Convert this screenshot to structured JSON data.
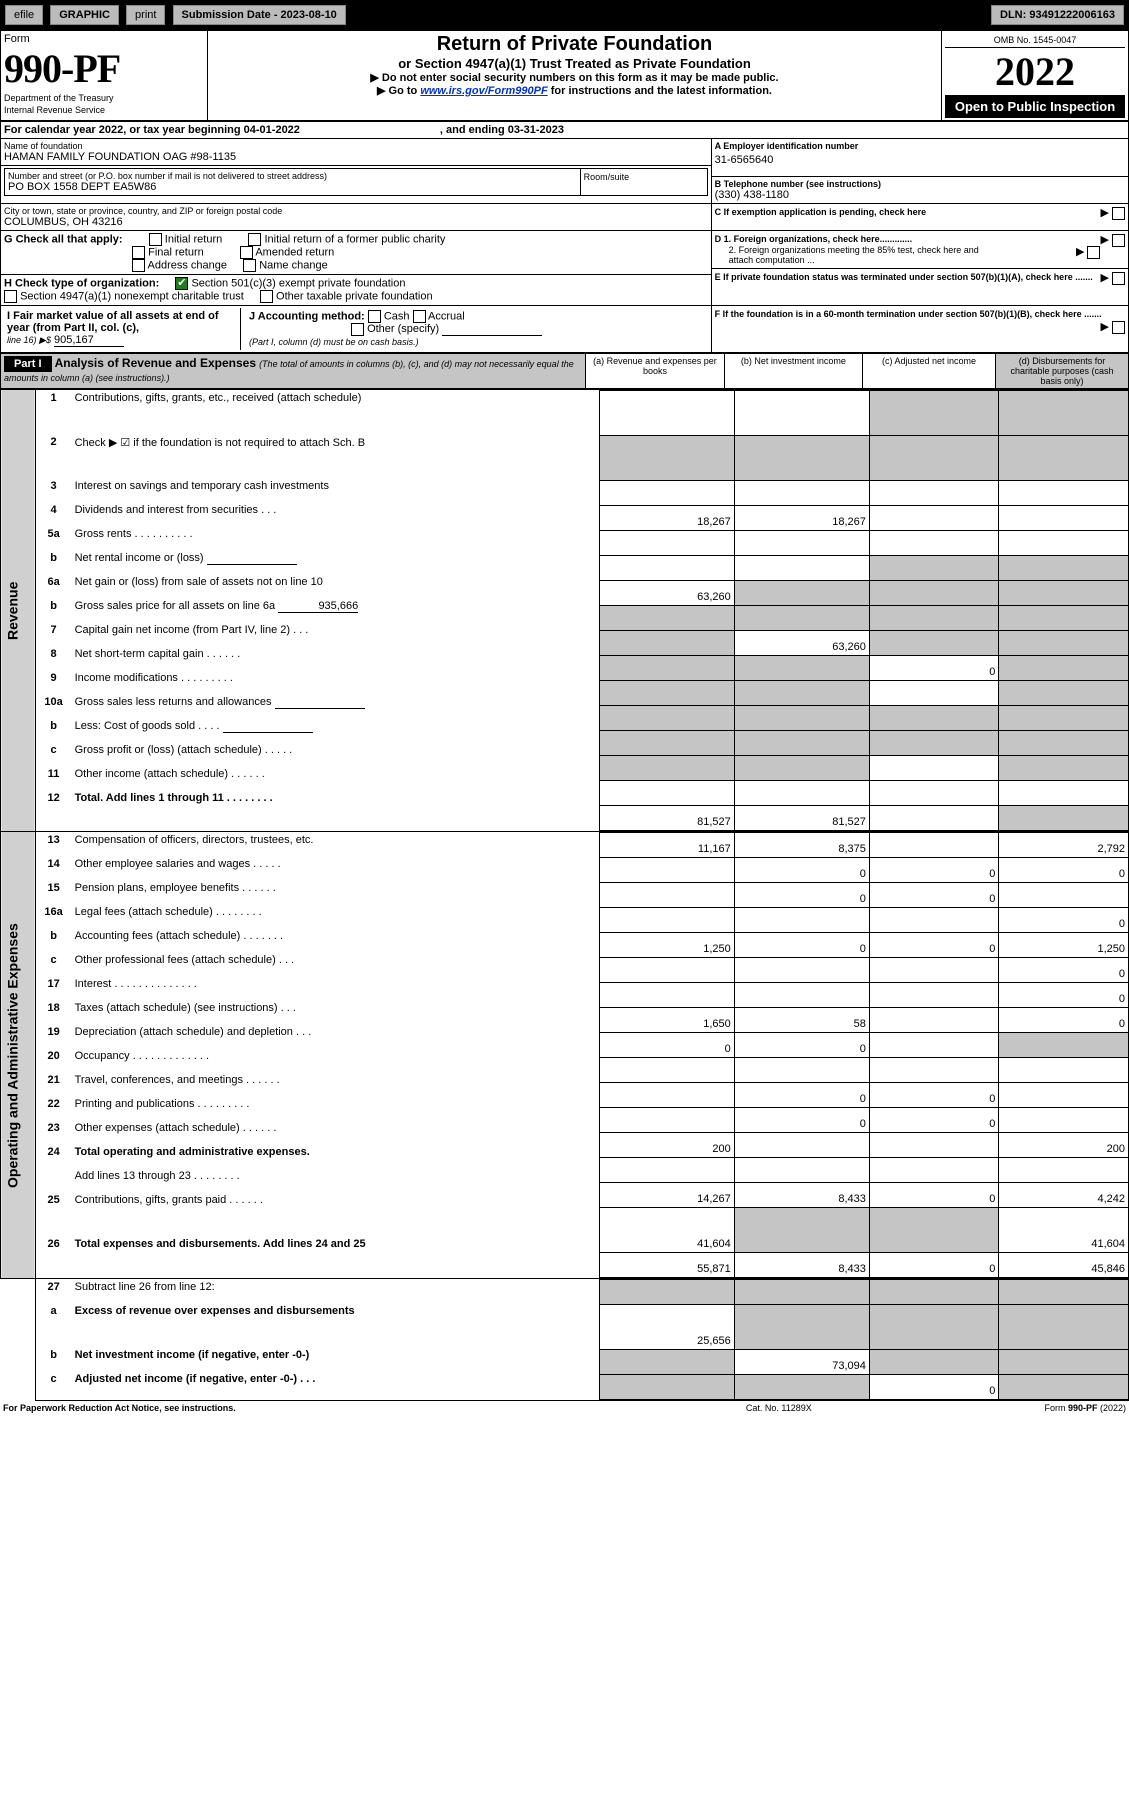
{
  "header_bar": {
    "efile": "efile",
    "graphic": "GRAPHIC",
    "print": "print",
    "sub_lbl": "Submission Date - 2023-08-10",
    "dln_lbl": "DLN: 93491222006163"
  },
  "form": {
    "word": "Form",
    "no": "990-PF",
    "dept": "Department of the Treasury",
    "irs": "Internal Revenue Service",
    "omb": "OMB No. 1545-0047",
    "year": "2022",
    "open": "Open to Public Inspection"
  },
  "title": {
    "main": "Return of Private Foundation",
    "sub": "or Section 4947(a)(1) Trust Treated as Private Foundation",
    "warn": "▶ Do not enter social security numbers on this form as it may be made public.",
    "goto1": "▶ Go to ",
    "goto_link": "www.irs.gov/Form990PF",
    "goto2": " for instructions and the latest information."
  },
  "period": {
    "line": "For calendar year 2022, or tax year beginning 04-01-2022",
    "end": ", and ending 03-31-2023"
  },
  "id": {
    "name_lbl": "Name of foundation",
    "name": "HAMAN FAMILY FOUNDATION OAG #98-1135",
    "addr_lbl": "Number and street (or P.O. box number if mail is not delivered to street address)",
    "room_lbl": "Room/suite",
    "addr": "PO BOX 1558 DEPT EA5W86",
    "city_lbl": "City or town, state or province, country, and ZIP or foreign postal code",
    "city": "COLUMBUS, OH  43216",
    "A": "A Employer identification number",
    "ein": "31-6565640",
    "B": "B Telephone number (see instructions)",
    "phone": "(330) 438-1180",
    "C": "C If exemption application is pending, check here"
  },
  "G": {
    "lbl": "G Check all that apply:",
    "o": [
      "Initial return",
      "Final return",
      "Address change",
      "Initial return of a former public charity",
      "Amended return",
      "Name change"
    ]
  },
  "D": {
    "d1": "D 1. Foreign organizations, check here.............",
    "d2": "2. Foreign organizations meeting the 85% test, check here and attach computation ..."
  },
  "H": {
    "lbl": "H Check type of organization:",
    "o1": "Section 501(c)(3) exempt private foundation",
    "o2": "Section 4947(a)(1) nonexempt charitable trust",
    "o3": "Other taxable private foundation"
  },
  "E": "E  If private foundation status was terminated under section 507(b)(1)(A), check here .......",
  "I": {
    "lbl": "I Fair market value of all assets at end of year (from Part II, col. (c),",
    "line": "line 16) ▶$",
    "val": "905,167"
  },
  "J": {
    "lbl": "J Accounting method:",
    "cash": "Cash",
    "accr": "Accrual",
    "other": "Other (specify)",
    "note": "(Part I, column (d) must be on cash basis.)"
  },
  "F": "F  If the foundation is in a 60-month termination under section 507(b)(1)(B), check here .......",
  "part1": {
    "hd": "Part I",
    "title": "Analysis of Revenue and Expenses",
    "paren": "(The total of amounts in columns (b), (c), and (d) may not necessarily equal the amounts in column (a) (see instructions).)",
    "cols": {
      "a": "(a)   Revenue and expenses per books",
      "b": "(b)   Net investment income",
      "c": "(c)   Adjusted net income",
      "d": "(d)   Disbursements for charitable purposes (cash basis only)"
    }
  },
  "rev_lbl": "Revenue",
  "exp_lbl": "Operating and Administrative Expenses",
  "rows": [
    {
      "n": "1",
      "t": "Contributions, gifts, grants, etc., received (attach schedule)",
      "a": "",
      "b": "",
      "c": "-",
      "d": "-"
    },
    {
      "n": "2",
      "t": "Check ▶ ☑ if the foundation is not required to attach Sch. B",
      "a": "-",
      "b": "-",
      "c": "-",
      "d": "-",
      "chk": true
    },
    {
      "n": "3",
      "t": "Interest on savings and temporary cash investments"
    },
    {
      "n": "4",
      "t": "Dividends and interest from securities   .   .   .",
      "a": "18,267",
      "b": "18,267"
    },
    {
      "n": "5a",
      "t": "Gross rents   .   .   .   .   .   .   .   .   .   ."
    },
    {
      "n": "b",
      "t": "Net rental income or (loss)",
      "inline": true,
      "c": "-",
      "d": "-"
    },
    {
      "n": "6a",
      "t": "Net gain or (loss) from sale of assets not on line 10",
      "a": "63,260",
      "b": "-",
      "c": "-",
      "d": "-"
    },
    {
      "n": "b",
      "t": "Gross sales price for all assets on line 6a",
      "inline2": "935,666",
      "a": "-",
      "b": "-",
      "c": "-",
      "d": "-"
    },
    {
      "n": "7",
      "t": "Capital gain net income (from Part IV, line 2)   .   .   .",
      "a": "-",
      "b": "63,260",
      "c": "-",
      "d": "-"
    },
    {
      "n": "8",
      "t": "Net short-term capital gain   .   .   .   .   .   .",
      "a": "-",
      "b": "-",
      "c": "0",
      "d": "-"
    },
    {
      "n": "9",
      "t": "Income modifications .   .   .   .   .   .   .   .   .",
      "a": "-",
      "b": "-",
      "d": "-"
    },
    {
      "n": "10a",
      "t": "Gross sales less returns and allowances",
      "inline": true,
      "a": "-",
      "b": "-",
      "c": "-",
      "d": "-"
    },
    {
      "n": "b",
      "t": "Less: Cost of goods sold   .   .   .   .",
      "inline": true,
      "a": "-",
      "b": "-",
      "c": "-",
      "d": "-"
    },
    {
      "n": "c",
      "t": "Gross profit or (loss) (attach schedule)   .   .   .   .   .",
      "a": "-",
      "b": "-",
      "d": "-"
    },
    {
      "n": "11",
      "t": "Other income (attach schedule)   .   .   .   .   .   ."
    },
    {
      "n": "12",
      "t": "Total. Add lines 1 through 11   .   .   .   .   .   .   .   .",
      "bold": true,
      "a": "81,527",
      "b": "81,527",
      "d": "-"
    }
  ],
  "exp_rows": [
    {
      "n": "13",
      "t": "Compensation of officers, directors, trustees, etc.",
      "a": "11,167",
      "b": "8,375",
      "c": "",
      "d": "2,792"
    },
    {
      "n": "14",
      "t": "Other employee salaries and wages   .   .   .   .   .",
      "b": "0",
      "c": "0",
      "d": "0"
    },
    {
      "n": "15",
      "t": "Pension plans, employee benefits   .   .   .   .   .   .",
      "b": "0",
      "c": "0"
    },
    {
      "n": "16a",
      "t": "Legal fees (attach schedule) .   .   .   .   .   .   .   .",
      "d": "0"
    },
    {
      "n": "b",
      "t": "Accounting fees (attach schedule) .   .   .   .   .   .   .",
      "a": "1,250",
      "b": "0",
      "c": "0",
      "d": "1,250"
    },
    {
      "n": "c",
      "t": "Other professional fees (attach schedule)   .   .   .",
      "d": "0"
    },
    {
      "n": "17",
      "t": "Interest .   .   .   .   .   .   .   .   .   .   .   .   .   .",
      "d": "0"
    },
    {
      "n": "18",
      "t": "Taxes (attach schedule) (see instructions)   .   .   .",
      "a": "1,650",
      "b": "58",
      "d": "0"
    },
    {
      "n": "19",
      "t": "Depreciation (attach schedule) and depletion   .   .   .",
      "a": "0",
      "b": "0",
      "d": "-"
    },
    {
      "n": "20",
      "t": "Occupancy .   .   .   .   .   .   .   .   .   .   .   .   ."
    },
    {
      "n": "21",
      "t": "Travel, conferences, and meetings .   .   .   .   .   .",
      "b": "0",
      "c": "0"
    },
    {
      "n": "22",
      "t": "Printing and publications .   .   .   .   .   .   .   .   .",
      "b": "0",
      "c": "0"
    },
    {
      "n": "23",
      "t": "Other expenses (attach schedule) .   .   .   .   .   .",
      "a": "200",
      "d": "200"
    },
    {
      "n": "24",
      "t": "Total operating and administrative expenses.",
      "bold": true
    },
    {
      "n": "",
      "t": "Add lines 13 through 23   .   .   .   .   .   .   .   .",
      "a": "14,267",
      "b": "8,433",
      "c": "0",
      "d": "4,242"
    },
    {
      "n": "25",
      "t": "Contributions, gifts, grants paid   .   .   .   .   .   .",
      "a": "41,604",
      "b": "-",
      "c": "-",
      "d": "41,604"
    },
    {
      "n": "26",
      "t": "Total expenses and disbursements. Add lines 24 and 25",
      "bold": true,
      "a": "55,871",
      "b": "8,433",
      "c": "0",
      "d": "45,846"
    }
  ],
  "final_rows": [
    {
      "n": "27",
      "t": "Subtract line 26 from line 12:",
      "a": "-",
      "b": "-",
      "c": "-",
      "d": "-"
    },
    {
      "n": "a",
      "t": "Excess of revenue over expenses and disbursements",
      "bold": true,
      "a": "25,656",
      "b": "-",
      "c": "-",
      "d": "-"
    },
    {
      "n": "b",
      "t": "Net investment income (if negative, enter -0-)",
      "bold": true,
      "a": "-",
      "b": "73,094",
      "c": "-",
      "d": "-"
    },
    {
      "n": "c",
      "t": "Adjusted net income (if negative, enter -0-)   .   .   .",
      "bold": true,
      "a": "-",
      "b": "-",
      "c": "0",
      "d": "-"
    }
  ],
  "footer": {
    "pra": "For Paperwork Reduction Act Notice, see instructions.",
    "cat": "Cat. No. 11289X",
    "form": "Form 990-PF (2022)"
  }
}
